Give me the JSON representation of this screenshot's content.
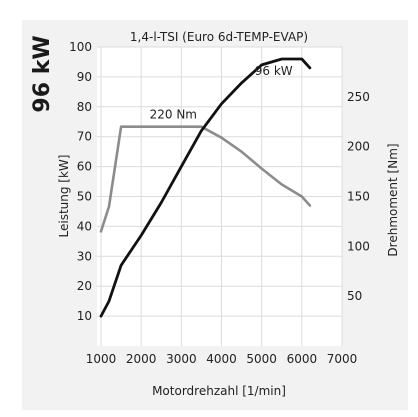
{
  "headline": "96 kW",
  "chart_data": {
    "type": "line",
    "title": "1,4-l-TSI (Euro 6d-TEMP-EVAP)",
    "xlabel": "Motordrehzahl [1/min]",
    "ylabel_left": "Leistung [kW]",
    "ylabel_right": "Drehmoment [Nm]",
    "xlim": [
      900,
      7000
    ],
    "ylim_left": [
      0,
      100
    ],
    "ylim_right": [
      0,
      300
    ],
    "x_ticks": [
      1000,
      2000,
      3000,
      4000,
      5000,
      6000,
      7000
    ],
    "y_ticks_left": [
      10,
      20,
      30,
      40,
      50,
      60,
      70,
      80,
      90,
      100
    ],
    "y_ticks_right": [
      50,
      100,
      150,
      200,
      250
    ],
    "grid": true,
    "series": [
      {
        "name": "Leistung",
        "axis": "left",
        "color": "#111111",
        "label": "96 kW",
        "x": [
          1000,
          1200,
          1500,
          2000,
          2500,
          3000,
          3500,
          4000,
          4500,
          5000,
          5500,
          6000,
          6200
        ],
        "y": [
          10,
          15,
          27,
          37,
          48,
          60,
          72,
          81,
          88,
          94,
          96,
          96,
          93
        ]
      },
      {
        "name": "Drehmoment",
        "axis": "right",
        "color": "#8c8c8c",
        "label": "220 Nm",
        "x": [
          1000,
          1200,
          1500,
          2000,
          2500,
          3000,
          3500,
          4000,
          4500,
          5000,
          5500,
          6000,
          6200
        ],
        "y": [
          115,
          140,
          220,
          220,
          220,
          220,
          220,
          209,
          195,
          178,
          162,
          150,
          141
        ]
      }
    ]
  }
}
